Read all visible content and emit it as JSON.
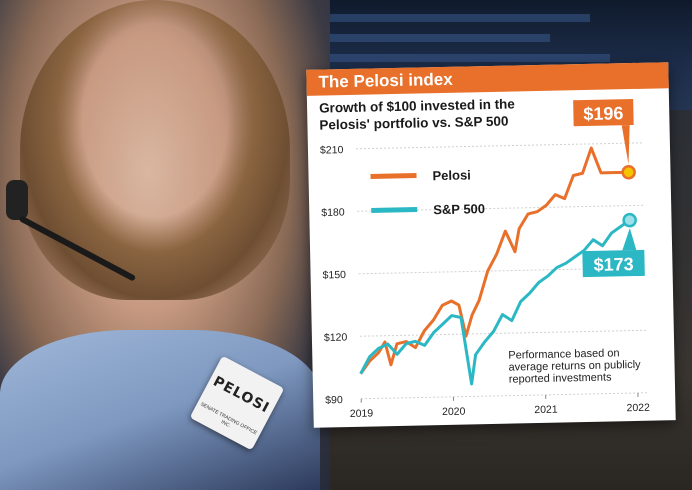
{
  "photo": {
    "badge_name": "PELOSI",
    "badge_sub": "SENATE TRADING OFFICE INC."
  },
  "card": {
    "title": "The Pelosi index",
    "subtitle": "Growth of $100 invested in the Pelosis' portfolio vs. S&P 500",
    "note_lines": [
      "Performance based on",
      "average returns on publicly",
      "reported investments"
    ]
  },
  "chart_data": {
    "type": "line",
    "title": "The Pelosi index",
    "subtitle": "Growth of $100 invested in the Pelosis' portfolio vs. S&P 500",
    "y_ticks": [
      "$90",
      "$120",
      "$150",
      "$180",
      "$210"
    ],
    "x_ticks": [
      "2019",
      "2020",
      "2021",
      "2022"
    ],
    "ylim": [
      90,
      210
    ],
    "xlim": [
      2019.0,
      2022.1
    ],
    "grid": true,
    "legend": "top-left",
    "series": [
      {
        "name": "Pelosi",
        "color": "#e8702a",
        "end_label": "$196",
        "x": [
          2019.0,
          2019.1,
          2019.2,
          2019.27,
          2019.33,
          2019.4,
          2019.5,
          2019.6,
          2019.7,
          2019.8,
          2019.9,
          2020.0,
          2020.08,
          2020.15,
          2020.22,
          2020.3,
          2020.4,
          2020.5,
          2020.6,
          2020.7,
          2020.75,
          2020.85,
          2020.95,
          2021.05,
          2021.15,
          2021.25,
          2021.35,
          2021.45,
          2021.55,
          2021.65,
          2021.75,
          2021.85,
          2021.95
        ],
        "values": [
          102,
          108,
          112,
          117,
          106,
          116,
          117,
          114,
          122,
          127,
          134,
          136,
          134,
          119,
          129,
          136,
          150,
          158,
          169,
          159,
          170,
          177,
          178,
          181,
          186,
          184,
          195,
          196,
          208,
          196,
          196,
          196,
          196
        ]
      },
      {
        "name": "S&P 500",
        "color": "#2bb8c4",
        "end_label": "$173",
        "x": [
          2019.0,
          2019.1,
          2019.2,
          2019.3,
          2019.4,
          2019.5,
          2019.6,
          2019.7,
          2019.8,
          2019.9,
          2020.0,
          2020.1,
          2020.2,
          2020.25,
          2020.35,
          2020.45,
          2020.55,
          2020.65,
          2020.75,
          2020.85,
          2020.95,
          2021.05,
          2021.15,
          2021.25,
          2021.35,
          2021.45,
          2021.55,
          2021.65,
          2021.75,
          2021.85,
          2021.95
        ],
        "values": [
          102,
          110,
          114,
          116,
          111,
          116,
          117,
          115,
          121,
          125,
          129,
          128,
          96,
          110,
          116,
          121,
          129,
          126,
          135,
          139,
          144,
          147,
          151,
          153,
          156,
          159,
          164,
          161,
          167,
          170,
          173
        ]
      }
    ]
  }
}
